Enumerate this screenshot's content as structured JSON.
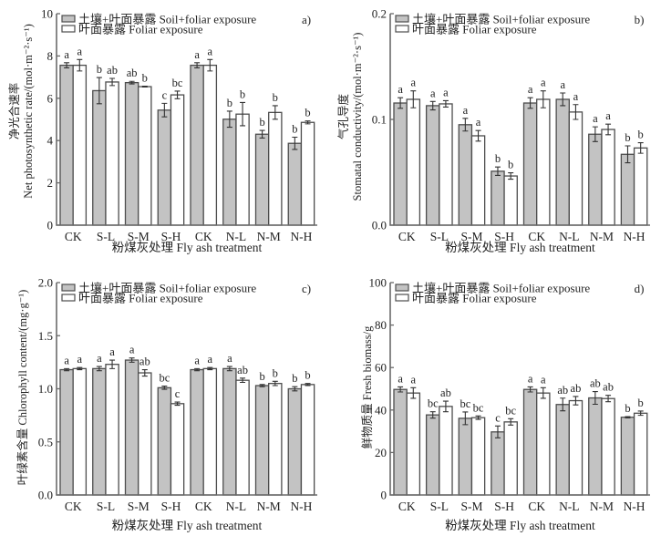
{
  "figure": {
    "legend": [
      {
        "label": "土壤+叶面暴露 Soil+foliar exposure",
        "fill": "#c3c3c3",
        "stroke": "#4d4d4d"
      },
      {
        "label": "叶面暴露 Foliar exposure",
        "fill": "#ffffff",
        "stroke": "#4d4d4d"
      }
    ],
    "xtitle": "粉煤灰处理 Fly ash treatment"
  },
  "chart_data": [
    {
      "type": "bar",
      "title": "a)",
      "xlabel": "粉煤灰处理 Fly ash treatment",
      "ylabel": [
        "净光合速率",
        "Net photosynthetic rate/(mol·m⁻²·s⁻¹)"
      ],
      "ylim": [
        0,
        10
      ],
      "yticks": [
        "0",
        "2",
        "4",
        "6",
        "8",
        "10"
      ],
      "ytick_values": [
        0,
        2,
        4,
        6,
        8,
        10
      ],
      "legend_position": "top-left",
      "grid": false,
      "categories": [
        "CK",
        "S-L",
        "S-M",
        "S-H",
        "CK",
        "N-L",
        "N-M",
        "N-H"
      ],
      "series": [
        {
          "name": "土壤+叶面暴露 Soil+foliar exposure",
          "values": [
            7.56,
            6.36,
            6.74,
            5.44,
            7.56,
            5.01,
            4.3,
            3.87
          ],
          "errors": [
            0.12,
            0.62,
            0.06,
            0.32,
            0.12,
            0.38,
            0.18,
            0.29
          ],
          "letters": [
            "a",
            "b",
            "ab",
            "c",
            "a",
            "b",
            "b",
            "b"
          ]
        },
        {
          "name": "叶面暴露 Foliar exposure",
          "values": [
            7.56,
            6.77,
            6.55,
            6.16,
            7.56,
            5.25,
            5.33,
            4.86
          ],
          "errors": [
            0.27,
            0.17,
            0.02,
            0.18,
            0.27,
            0.55,
            0.32,
            0.07
          ],
          "letters": [
            "a",
            "ab",
            "b",
            "bc",
            "a",
            "b",
            "b",
            "b"
          ]
        }
      ]
    },
    {
      "type": "bar",
      "title": "b)",
      "xlabel": "粉煤灰处理 Fly ash treatment",
      "ylabel": [
        "气孔导度",
        "Stomatal conductivity/(mol·m⁻²·s⁻¹)"
      ],
      "ylim": [
        0,
        0.2
      ],
      "yticks": [
        "0.0",
        "0.1",
        "0.2"
      ],
      "ytick_values": [
        0,
        0.1,
        0.2
      ],
      "legend_position": "top-left",
      "grid": false,
      "categories": [
        "CK",
        "S-L",
        "S-M",
        "S-H",
        "CK",
        "N-L",
        "N-M",
        "N-H"
      ],
      "series": [
        {
          "name": "土壤+叶面暴露 Soil+foliar exposure",
          "values": [
            0.1155,
            0.113,
            0.095,
            0.051,
            0.1155,
            0.119,
            0.086,
            0.067
          ],
          "errors": [
            0.005,
            0.004,
            0.006,
            0.004,
            0.005,
            0.006,
            0.007,
            0.008
          ],
          "letters": [
            "a",
            "a",
            "a",
            "b",
            "a",
            "a",
            "a",
            "b"
          ]
        },
        {
          "name": "叶面暴露 Foliar exposure",
          "values": [
            0.119,
            0.1147,
            0.0845,
            0.0465,
            0.119,
            0.107,
            0.0905,
            0.073
          ],
          "errors": [
            0.008,
            0.003,
            0.005,
            0.003,
            0.008,
            0.007,
            0.005,
            0.005
          ],
          "letters": [
            "a",
            "a",
            "a",
            "b",
            "a",
            "a",
            "a",
            "b"
          ]
        }
      ]
    },
    {
      "type": "bar",
      "title": "c)",
      "xlabel": "粉煤灰处理 Fly ash treatment",
      "ylabel": [
        "叶绿素含量 Chlorophyll content/(mg·g⁻¹)"
      ],
      "ylim": [
        0,
        2.0
      ],
      "yticks": [
        "0.0",
        "0.5",
        "1.0",
        "1.5",
        "2.0"
      ],
      "ytick_values": [
        0,
        0.5,
        1.0,
        1.5,
        2.0
      ],
      "legend_position": "top-left",
      "grid": false,
      "categories": [
        "CK",
        "S-L",
        "S-M",
        "S-H",
        "CK",
        "N-L",
        "N-M",
        "N-H"
      ],
      "series": [
        {
          "name": "土壤+叶面暴露 Soil+foliar exposure",
          "values": [
            1.18,
            1.19,
            1.27,
            1.01,
            1.18,
            1.19,
            1.03,
            1.0
          ],
          "errors": [
            0.01,
            0.02,
            0.02,
            0.015,
            0.01,
            0.02,
            0.01,
            0.02
          ],
          "letters": [
            "a",
            "a",
            "a",
            "bc",
            "a",
            "a",
            "b",
            "b"
          ]
        },
        {
          "name": "叶面暴露 Foliar exposure",
          "values": [
            1.19,
            1.23,
            1.15,
            0.86,
            1.19,
            1.08,
            1.05,
            1.04
          ],
          "errors": [
            0.01,
            0.04,
            0.03,
            0.015,
            0.01,
            0.02,
            0.02,
            0.01
          ],
          "letters": [
            "a",
            "a",
            "ab",
            "c",
            "a",
            "ab",
            "b",
            "b"
          ]
        }
      ]
    },
    {
      "type": "bar",
      "title": "d)",
      "xlabel": "粉煤灰处理 Fly ash treatment",
      "ylabel": [
        "鲜物质量 Fresh biomass/g"
      ],
      "ylim": [
        0,
        100
      ],
      "yticks": [
        "0",
        "20",
        "40",
        "60",
        "80",
        "100"
      ],
      "ytick_values": [
        0,
        20,
        40,
        60,
        80,
        100
      ],
      "legend_position": "top-left",
      "grid": false,
      "categories": [
        "CK",
        "S-L",
        "S-M",
        "S-H",
        "CK",
        "N-L",
        "N-M",
        "N-H"
      ],
      "series": [
        {
          "name": "土壤+叶面暴露 Soil+foliar exposure",
          "values": [
            49.7,
            37.7,
            36.1,
            29.7,
            49.7,
            42.6,
            45.7,
            36.6
          ],
          "errors": [
            1.2,
            1.5,
            3.0,
            2.8,
            1.2,
            3.0,
            3.0,
            0.3
          ],
          "letters": [
            "a",
            "bc",
            "bc",
            "c",
            "a",
            "ab",
            "ab",
            "b"
          ]
        },
        {
          "name": "叶面暴露 Foliar exposure",
          "values": [
            48.0,
            41.7,
            36.4,
            34.4,
            48.0,
            44.4,
            45.4,
            38.5
          ],
          "errors": [
            2.5,
            2.5,
            0.8,
            1.5,
            2.5,
            2.0,
            1.5,
            1.0
          ],
          "letters": [
            "a",
            "ab",
            "bc",
            "bc",
            "a",
            "ab",
            "ab",
            "b"
          ]
        }
      ]
    }
  ]
}
